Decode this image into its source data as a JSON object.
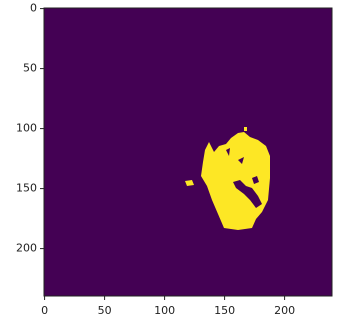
{
  "chart_data": {
    "type": "image",
    "xlim": [
      -0.5,
      239.5
    ],
    "ylim": [
      239.5,
      -0.5
    ],
    "xticks": [
      0,
      50,
      100,
      150,
      200
    ],
    "yticks": [
      0,
      50,
      100,
      150,
      200
    ],
    "background_color": "#440154",
    "foreground_color": "#fde725"
  }
}
